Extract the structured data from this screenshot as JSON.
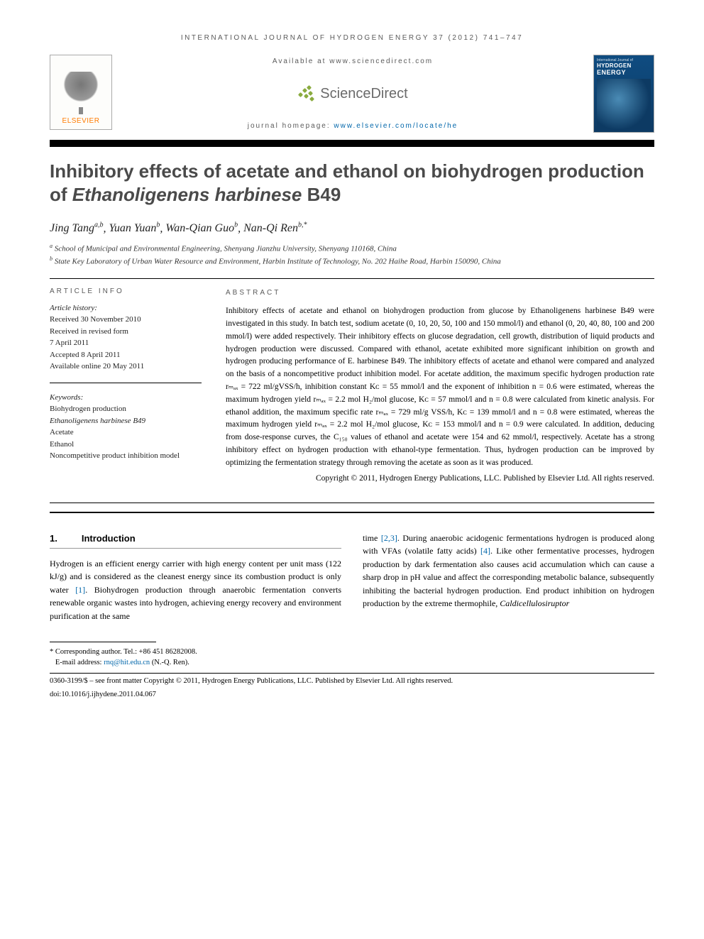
{
  "runningHead": "INTERNATIONAL JOURNAL OF HYDROGEN ENERGY 37 (2012) 741–747",
  "availableAt": "Available at www.sciencedirect.com",
  "sdBrand": "ScienceDirect",
  "homepagePrefix": "journal homepage: ",
  "homepageLink": "www.elsevier.com/locate/he",
  "elsevierWord": "ELSEVIER",
  "cover": {
    "line1": "International Journal of",
    "line2": "HYDROGEN",
    "line3": "ENERGY"
  },
  "title": {
    "pre": "Inhibitory effects of acetate and ethanol on biohydrogen production of ",
    "em": "Ethanoligenens harbinese",
    "post": " B49"
  },
  "authors": [
    {
      "name": "Jing Tang",
      "sup": "a,b"
    },
    {
      "name": "Yuan Yuan",
      "sup": "b"
    },
    {
      "name": "Wan-Qian Guo",
      "sup": "b"
    },
    {
      "name": "Nan-Qi Ren",
      "sup": "b,*"
    }
  ],
  "affiliations": [
    {
      "sup": "a",
      "text": "School of Municipal and Environmental Engineering, Shenyang Jianzhu University, Shenyang 110168, China"
    },
    {
      "sup": "b",
      "text": "State Key Laboratory of Urban Water Resource and Environment, Harbin Institute of Technology, No. 202 Haihe Road, Harbin 150090, China"
    }
  ],
  "articleInfo": {
    "head": "ARTICLE INFO",
    "historyLabel": "Article history:",
    "history": [
      "Received 30 November 2010",
      "Received in revised form",
      "7 April 2011",
      "Accepted 8 April 2011",
      "Available online 20 May 2011"
    ],
    "keywordsLabel": "Keywords:",
    "keywords": [
      "Biohydrogen production",
      "Ethanoligenens harbinese B49",
      "Acetate",
      "Ethanol",
      "Noncompetitive product inhibition model"
    ]
  },
  "abstract": {
    "head": "ABSTRACT",
    "body": "Inhibitory effects of acetate and ethanol on biohydrogen production from glucose by Ethanoligenens harbinese B49 were investigated in this study. In batch test, sodium acetate (0, 10, 20, 50, 100 and 150 mmol/l) and ethanol (0, 20, 40, 80, 100 and 200 mmol/l) were added respectively. Their inhibitory effects on glucose degradation, cell growth, distribution of liquid products and hydrogen production were discussed. Compared with ethanol, acetate exhibited more significant inhibition on growth and hydrogen producing performance of E. harbinese B49. The inhibitory effects of acetate and ethanol were compared and analyzed on the basis of a noncompetitive product inhibition model. For acetate addition, the maximum specific hydrogen production rate rₘₐₓ = 722 ml/gVSS/h, inhibition constant Kᴄ = 55 mmol/l and the exponent of inhibition n = 0.6 were estimated, whereas the maximum hydrogen yield rₘₐₓ = 2.2 mol H₂/mol glucose, Kᴄ = 57 mmol/l and n = 0.8 were calculated from kinetic analysis. For ethanol addition, the maximum specific rate rₘₐₓ = 729 ml/g VSS/h, Kᴄ = 139 mmol/l and n = 0.8 were estimated, whereas the maximum hydrogen yield rₘₐₓ = 2.2 mol H₂/mol glucose, Kᴄ = 153 mmol/l and n = 0.9 were calculated. In addition, deducing from dose-response curves, the C₁₅₀ values of ethanol and acetate were 154 and 62 mmol/l, respectively. Acetate has a strong inhibitory effect on hydrogen production with ethanol-type fermentation. Thus, hydrogen production can be improved by optimizing the fermentation strategy through removing the acetate as soon as it was produced.",
    "copyright": "Copyright © 2011, Hydrogen Energy Publications, LLC. Published by Elsevier Ltd. All rights reserved."
  },
  "section": {
    "num": "1.",
    "title": "Introduction"
  },
  "bodyLeft": {
    "p1a": "Hydrogen is an efficient energy carrier with high energy content per unit mass (122 kJ/g) and is considered as the cleanest energy since its combustion product is only water ",
    "c1": "[1]",
    "p1b": ". Biohydrogen production through anaerobic fermentation converts renewable organic wastes into hydrogen, achieving energy recovery and environment purification at the same"
  },
  "bodyRight": {
    "p1a": "time ",
    "c23": "[2,3]",
    "p1b": ". During anaerobic acidogenic fermentations hydrogen is produced along with VFAs (volatile fatty acids) ",
    "c4": "[4]",
    "p1c": ". Like other fermentative processes, hydrogen production by dark fermentation also causes acid accumulation which can cause a sharp drop in pH value and affect the corresponding metabolic balance, subsequently inhibiting the bacterial hydrogen production. End product inhibition on hydrogen production by the extreme thermophile, ",
    "em": "Caldicellulosiruptor"
  },
  "footnotes": {
    "corrLabel": "* Corresponding author.",
    "corrTel": " Tel.: +86 451 86282008.",
    "emailLabel": "E-mail address: ",
    "email": "rnq@hit.edu.cn",
    "emailSuffix": " (N.-Q. Ren).",
    "issn": "0360-3199/$ – see front matter Copyright © 2011, Hydrogen Energy Publications, LLC. Published by Elsevier Ltd. All rights reserved.",
    "doiLabel": "doi:",
    "doi": "10.1016/j.ijhydene.2011.04.067"
  },
  "colors": {
    "link": "#0066aa",
    "elsevierOrange": "#ff7b00",
    "headerGray": "#5a5a5a"
  }
}
